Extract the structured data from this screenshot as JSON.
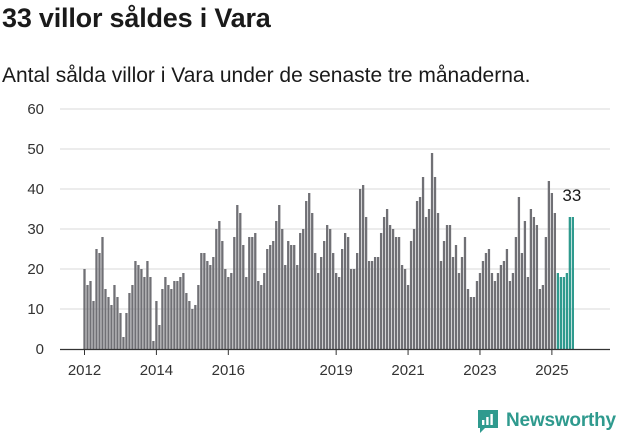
{
  "title": "33 villor såldes i Vara",
  "subtitle": "Antal sålda villor i Vara under de senaste tre månaderna.",
  "brand": {
    "name": "Newsworthy",
    "icon": "newsworthy-logo-icon"
  },
  "colors": {
    "bar": "#707075",
    "highlight": "#2f9a8e",
    "grid": "#d8d8d8",
    "axis": "#333333",
    "text": "#333333"
  },
  "chart_data": {
    "type": "bar",
    "x_start": "2012-01",
    "x_step": "month",
    "x_ticks": [
      "2012",
      "2014",
      "2016",
      "2019",
      "2021",
      "2023",
      "2025"
    ],
    "y_ticks": [
      0,
      10,
      20,
      30,
      40,
      50,
      60
    ],
    "ylim": [
      0,
      60
    ],
    "grid": "horizontal",
    "highlight_from": "2025-03",
    "last_label": "33",
    "values": [
      20,
      16,
      17,
      12,
      25,
      24,
      28,
      15,
      13,
      11,
      16,
      13,
      9,
      3,
      9,
      14,
      16,
      22,
      21,
      20,
      18,
      22,
      18,
      2,
      12,
      6,
      15,
      18,
      16,
      15,
      17,
      17,
      18,
      19,
      14,
      12,
      10,
      11,
      16,
      24,
      24,
      22,
      21,
      23,
      30,
      32,
      27,
      20,
      18,
      19,
      28,
      36,
      34,
      26,
      18,
      28,
      28,
      29,
      17,
      16,
      19,
      25,
      26,
      27,
      32,
      36,
      30,
      21,
      27,
      26,
      26,
      21,
      29,
      30,
      37,
      39,
      34,
      24,
      19,
      23,
      27,
      31,
      30,
      24,
      19,
      18,
      25,
      29,
      28,
      20,
      20,
      24,
      40,
      41,
      33,
      22,
      22,
      23,
      23,
      29,
      33,
      35,
      31,
      30,
      28,
      28,
      21,
      20,
      16,
      27,
      30,
      37,
      38,
      43,
      33,
      35,
      49,
      43,
      34,
      22,
      27,
      31,
      31,
      23,
      26,
      19,
      23,
      28,
      15,
      13,
      13,
      17,
      19,
      22,
      24,
      25,
      19,
      17,
      19,
      21,
      22,
      25,
      17,
      19,
      28,
      38,
      24,
      32,
      18,
      35,
      33,
      31,
      15,
      16,
      28,
      42,
      39,
      34,
      19,
      18,
      18,
      19,
      33,
      33
    ]
  }
}
